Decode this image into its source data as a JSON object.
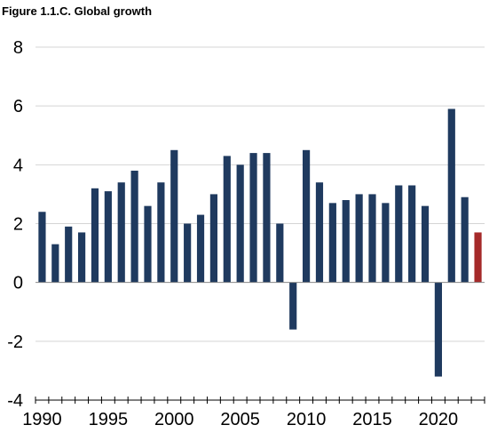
{
  "title": "Figure 1.1.C. Global growth",
  "chart_data": {
    "type": "bar",
    "title": "Figure 1.1.C. Global growth",
    "xlabel": "",
    "ylabel": "",
    "ylim": [
      -4,
      8
    ],
    "yticks": [
      8,
      6,
      4,
      2,
      0,
      -2,
      -4
    ],
    "xtick_labels": [
      "1990",
      "1995",
      "2000",
      "2005",
      "2010",
      "2015",
      "2020"
    ],
    "grid": "horizontal",
    "legend": "none",
    "colors": {
      "default": "#1f3a5f",
      "highlight": "#a52a2a"
    },
    "highlight_category": "2023",
    "categories": [
      "1990",
      "1991",
      "1992",
      "1993",
      "1994",
      "1995",
      "1996",
      "1997",
      "1998",
      "1999",
      "2000",
      "2001",
      "2002",
      "2003",
      "2004",
      "2005",
      "2006",
      "2007",
      "2008",
      "2009",
      "2010",
      "2011",
      "2012",
      "2013",
      "2014",
      "2015",
      "2016",
      "2017",
      "2018",
      "2019",
      "2020",
      "2021",
      "2022",
      "2023"
    ],
    "values": [
      2.4,
      1.3,
      1.9,
      1.7,
      3.2,
      3.1,
      3.4,
      3.8,
      2.6,
      3.4,
      4.5,
      2.0,
      2.3,
      3.0,
      4.3,
      4.0,
      4.4,
      4.4,
      2.0,
      -1.6,
      4.5,
      3.4,
      2.7,
      2.8,
      3.0,
      3.0,
      2.7,
      3.3,
      3.3,
      2.6,
      -3.2,
      5.9,
      2.9,
      1.7
    ]
  }
}
